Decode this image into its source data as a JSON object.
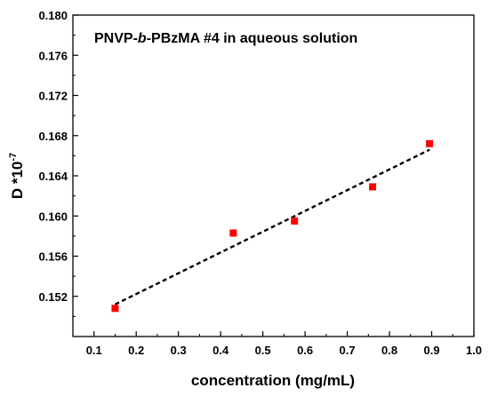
{
  "chart_data": {
    "type": "scatter",
    "title_parts": [
      "PNVP-",
      "b",
      "-PBzMA #4 in aqueous solution"
    ],
    "xlabel": "concentration (mg/mL)",
    "ylabel_main": "D *10",
    "ylabel_exp": "-7",
    "xlim": [
      0.05,
      1.0
    ],
    "ylim": [
      0.148,
      0.18
    ],
    "x_ticks": [
      "0.1",
      "0.2",
      "0.3",
      "0.4",
      "0.5",
      "0.6",
      "0.7",
      "0.8",
      "0.9",
      "1.0"
    ],
    "y_ticks": [
      "0.152",
      "0.156",
      "0.160",
      "0.164",
      "0.168",
      "0.172",
      "0.176",
      "0.180"
    ],
    "series": [
      {
        "marker": "square",
        "color": "#ff0000",
        "points": [
          {
            "x": 0.15,
            "y": 0.1508
          },
          {
            "x": 0.43,
            "y": 0.1583
          },
          {
            "x": 0.575,
            "y": 0.1595
          },
          {
            "x": 0.76,
            "y": 0.1629
          },
          {
            "x": 0.895,
            "y": 0.1672
          }
        ]
      }
    ],
    "fit_line": {
      "style": "dashed",
      "color": "#000000",
      "start": {
        "x": 0.15,
        "y": 0.1512
      },
      "end": {
        "x": 0.895,
        "y": 0.1666
      }
    },
    "grid": false
  }
}
